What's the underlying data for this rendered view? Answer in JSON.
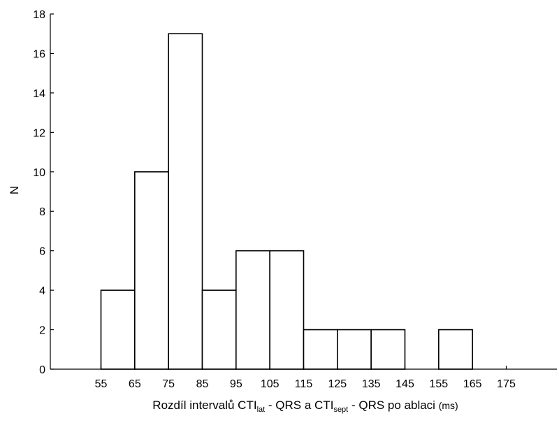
{
  "chart_data": {
    "type": "bar",
    "bin_edges": [
      55,
      65,
      75,
      85,
      95,
      105,
      115,
      125,
      135,
      145,
      155,
      165,
      175
    ],
    "values": [
      4,
      10,
      17,
      4,
      6,
      6,
      2,
      2,
      2,
      0,
      2,
      0
    ],
    "xlim": [
      40,
      190
    ],
    "ylim": [
      0,
      18
    ],
    "y_ticks": [
      0,
      2,
      4,
      6,
      8,
      10,
      12,
      14,
      16,
      18
    ],
    "x_ticks": [
      55,
      65,
      75,
      85,
      95,
      105,
      115,
      125,
      135,
      145,
      155,
      165,
      175
    ],
    "ylabel": "N",
    "xlabel_parts": {
      "a": "Rozdíl intervalů CTI",
      "sub1": "lat",
      "b": " - QRS a CTI",
      "sub2": "sept",
      "c": " - QRS po ablaci ",
      "unit": "(ms)"
    },
    "grid": false,
    "bar_fill": "#ffffff",
    "bar_stroke": "#000000"
  }
}
